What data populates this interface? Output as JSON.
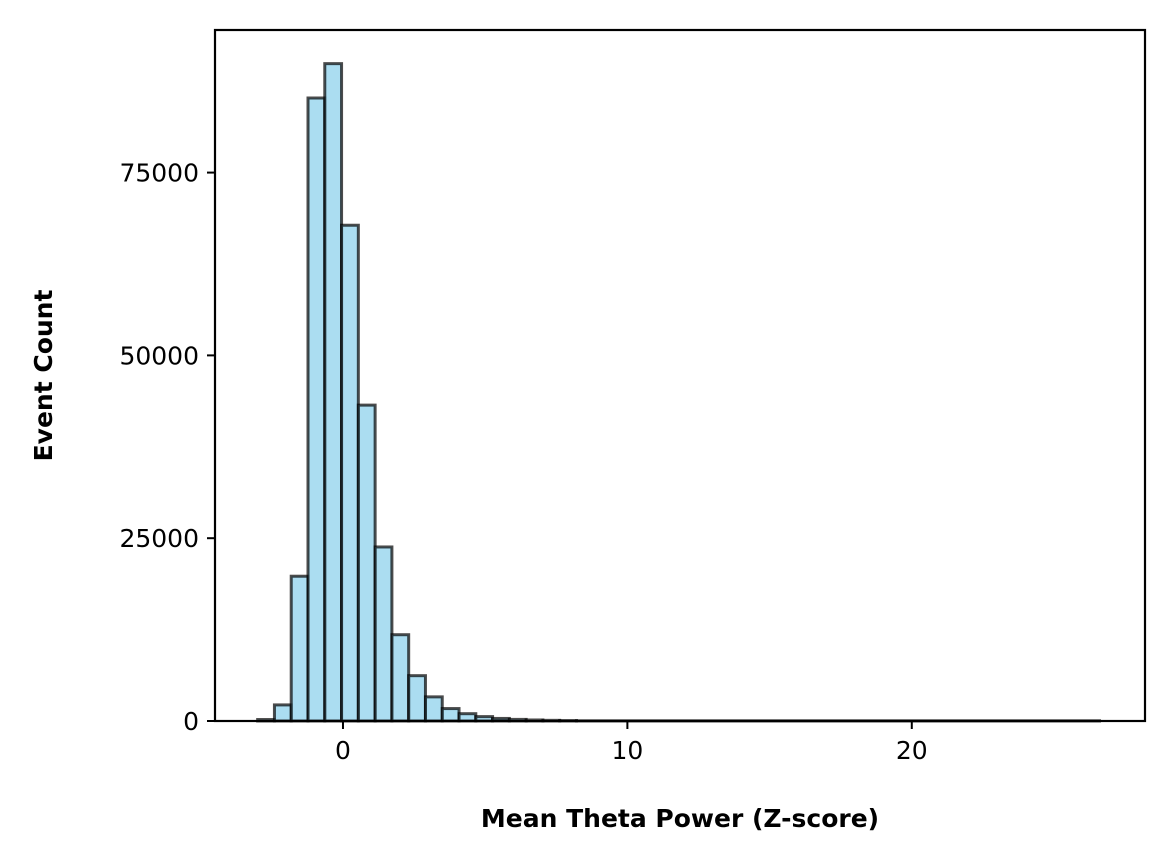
{
  "chart_data": {
    "type": "bar",
    "title": "",
    "xlabel": "Mean Theta Power (Z-score)",
    "ylabel": "Event Count",
    "xlim": [
      -4.5,
      28.2
    ],
    "ylim": [
      0,
      94500
    ],
    "x_ticks": [
      0,
      10,
      20
    ],
    "y_ticks": [
      0,
      25000,
      50000,
      75000
    ],
    "x_tick_labels": [
      "0",
      "10",
      "20"
    ],
    "y_tick_labels": [
      "0",
      "25000",
      "50000",
      "75000"
    ],
    "bin_width": 0.59,
    "bin_start": -3.0,
    "bins": [
      {
        "x0": -3.0,
        "x1": -2.41,
        "count": 200
      },
      {
        "x0": -2.41,
        "x1": -1.82,
        "count": 2200
      },
      {
        "x0": -1.82,
        "x1": -1.23,
        "count": 19800
      },
      {
        "x0": -1.23,
        "x1": -0.64,
        "count": 85200
      },
      {
        "x0": -0.64,
        "x1": -0.05,
        "count": 89900
      },
      {
        "x0": -0.05,
        "x1": 0.54,
        "count": 67800
      },
      {
        "x0": 0.54,
        "x1": 1.13,
        "count": 43200
      },
      {
        "x0": 1.13,
        "x1": 1.72,
        "count": 23800
      },
      {
        "x0": 1.72,
        "x1": 2.31,
        "count": 11800
      },
      {
        "x0": 2.31,
        "x1": 2.9,
        "count": 6200
      },
      {
        "x0": 2.9,
        "x1": 3.49,
        "count": 3300
      },
      {
        "x0": 3.49,
        "x1": 4.08,
        "count": 1700
      },
      {
        "x0": 4.08,
        "x1": 4.67,
        "count": 1000
      },
      {
        "x0": 4.67,
        "x1": 5.26,
        "count": 600
      },
      {
        "x0": 5.26,
        "x1": 5.85,
        "count": 350
      },
      {
        "x0": 5.85,
        "x1": 6.44,
        "count": 220
      },
      {
        "x0": 6.44,
        "x1": 7.03,
        "count": 140
      },
      {
        "x0": 7.03,
        "x1": 7.62,
        "count": 90
      },
      {
        "x0": 7.62,
        "x1": 8.21,
        "count": 60
      },
      {
        "x0": 8.21,
        "x1": 26.6,
        "count": 30
      }
    ],
    "grid": false,
    "legend": null,
    "colors": {
      "bar_fill": "#87CEEB",
      "bar_fill_opacity": 0.7,
      "bar_edge": "#000000",
      "bar_edge_opacity": 0.7
    }
  }
}
